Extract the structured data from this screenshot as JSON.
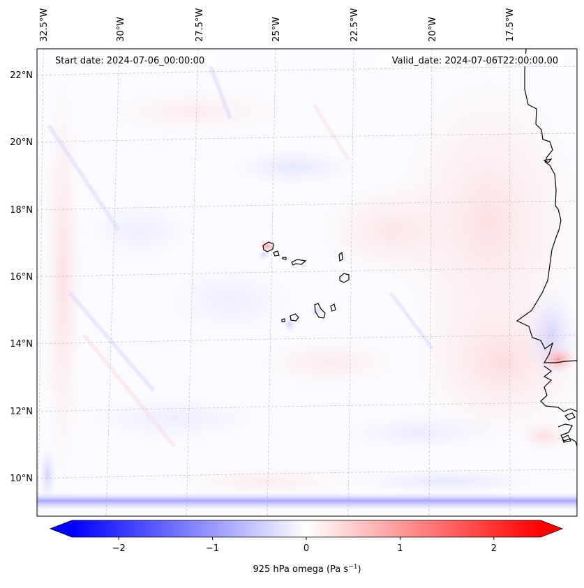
{
  "map": {
    "start_label": "Start date: 2024-07-06_00:00:00",
    "valid_label": "Valid_date: 2024-07-06T22:00:00.00",
    "lon_labels": [
      "32.5°W",
      "30°W",
      "27.5°W",
      "25°W",
      "22.5°W",
      "20°W",
      "17.5°W"
    ],
    "lat_labels": [
      "22°N",
      "20°N",
      "18°N",
      "16°N",
      "14°N",
      "12°N",
      "10°N"
    ],
    "field": "925 hPa omega",
    "field_units": "Pa s",
    "field_units_exp": "−1"
  },
  "colorbar": {
    "ticks": [
      "−2",
      "−1",
      "0",
      "1",
      "2"
    ],
    "tick_values": [
      -2,
      -1,
      0,
      1,
      2
    ],
    "range": [
      -2.5,
      2.5
    ],
    "colormap": "bwr",
    "low_color": "#0000ff",
    "mid_color": "#ffffff",
    "high_color": "#ff0000"
  },
  "colors": {
    "coastline": "#000000",
    "gridline": "#b0b0b0"
  }
}
